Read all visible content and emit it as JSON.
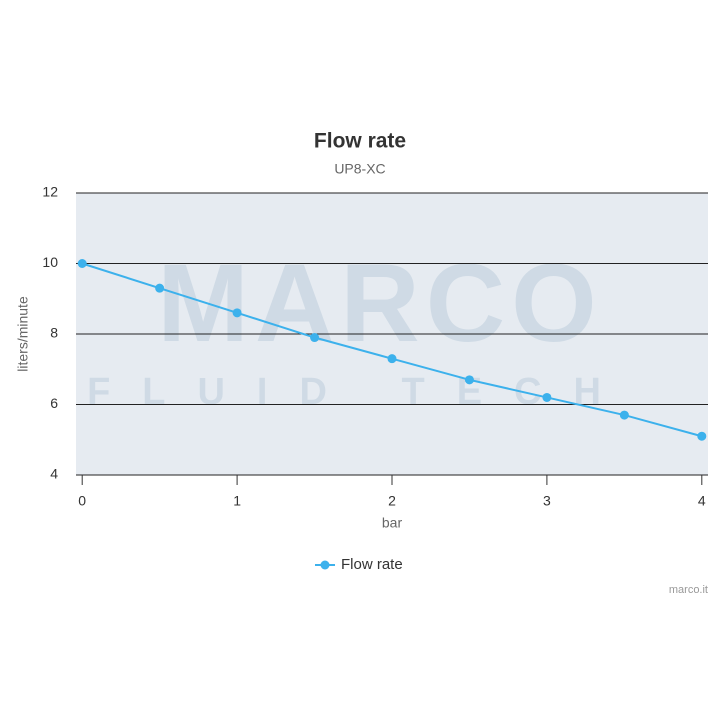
{
  "chart_data": {
    "type": "line",
    "title": "Flow rate",
    "subtitle": "UP8-XC",
    "x_label": "bar",
    "y_label": "liters/minute",
    "x": [
      0,
      0.5,
      1,
      1.5,
      2,
      2.5,
      3,
      3.5,
      4
    ],
    "series": [
      {
        "name": "Flow rate",
        "color": "#3cb1ec",
        "values": [
          10.0,
          9.3,
          8.6,
          7.9,
          7.3,
          6.7,
          6.2,
          5.7,
          5.1
        ]
      }
    ],
    "xlim": [
      -0.04,
      4.04
    ],
    "xticks": [
      0,
      1,
      2,
      3,
      4
    ],
    "ylim": [
      4,
      12
    ],
    "yticks": [
      4,
      6,
      8,
      10,
      12
    ],
    "grid": true,
    "legend": "bottom",
    "watermark": [
      "MARCO",
      "FLUID TECH"
    ],
    "credits": "marco.it"
  }
}
